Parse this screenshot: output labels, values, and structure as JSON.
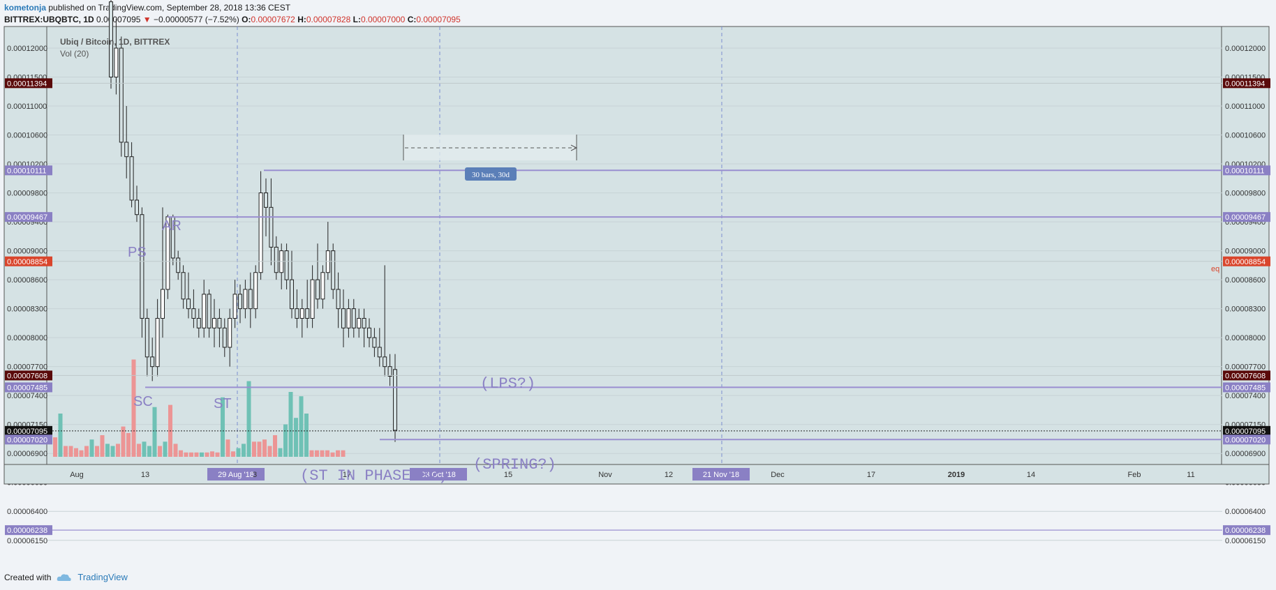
{
  "header": {
    "user": "kometonja",
    "published": "published on TradingView.com, September 28, 2018 13:36 CEST",
    "symbol": "BITTREX:UBQBTC, 1D",
    "last": "0.00007095",
    "change": "−0.00000577 (−7.52%)",
    "o_label": "O:",
    "o": "0.00007672",
    "h_label": "H:",
    "h": "0.00007828",
    "l_label": "L:",
    "l": "0.00007000",
    "c_label": "C:",
    "c": "0.00007095"
  },
  "legend": {
    "title": "Ubiq / Bitcoin, 1D, BITTREX",
    "vol": "Vol (20)"
  },
  "footer": {
    "created": "Created with",
    "brand": "TradingView"
  },
  "colors": {
    "bg": "#d5e2e4",
    "up": "#6fc1b5",
    "down": "#ec9595",
    "purple": "#9a8fd0",
    "label_purple": "#8a80c4",
    "dark_label": "#5a0a0a",
    "red_label": "#d9452c"
  },
  "chart_data": {
    "type": "candlestick",
    "x_axis_labels": [
      "Aug",
      "13",
      "29 Aug '18",
      "3",
      "17",
      "03 Oct '18",
      "15",
      "Nov",
      "12",
      "21 Nov '18",
      "Dec",
      "17",
      "2019",
      "14",
      "Feb",
      "11"
    ],
    "y_ticks": [
      "0.00012000",
      "0.00011500",
      "0.00011000",
      "0.00010600",
      "0.00010200",
      "0.00009800",
      "0.00009400",
      "0.00009000",
      "0.00008600",
      "0.00008300",
      "0.00008000",
      "0.00007700",
      "0.00007400",
      "0.00007150",
      "0.00006900",
      "0.00006650",
      "0.00006400",
      "0.00006150"
    ],
    "ylim": [
      6.15e-05,
      0.000124
    ],
    "price_labels": [
      {
        "value": 0.00011394,
        "text": "0.00011394",
        "style": "dark"
      },
      {
        "value": 0.00010111,
        "text": "0.00010111",
        "style": "purple"
      },
      {
        "value": 9.467e-05,
        "text": "0.00009467",
        "style": "purple"
      },
      {
        "value": 8.854e-05,
        "text": "0.00008854",
        "style": "red"
      },
      {
        "value": 7.608e-05,
        "text": "0.00007608",
        "style": "dark"
      },
      {
        "value": 7.485e-05,
        "text": "0.00007485",
        "style": "purple"
      },
      {
        "value": 7.095e-05,
        "text": "0.00007095",
        "style": "black"
      },
      {
        "value": 7.02e-05,
        "text": "0.00007020",
        "style": "purple"
      },
      {
        "value": 6.238e-05,
        "text": "0.00006238",
        "style": "purple"
      }
    ],
    "eq_label": "eq",
    "annotations": [
      {
        "text": "AR",
        "value": 9.77e-05,
        "bar": 23
      },
      {
        "text": "PS",
        "value": 9.37e-05,
        "bar": 17
      },
      {
        "text": "SC",
        "value": 7.54e-05,
        "bar": 18
      },
      {
        "text": "ST",
        "value": 7.54e-05,
        "bar": 31
      },
      {
        "text": "(LPS?)",
        "value": 7.84e-05,
        "bar": 73
      },
      {
        "text": "(SPRING?)",
        "value": 6.82e-05,
        "bar": 75
      },
      {
        "text": "(ST IN PHASE B?)",
        "value": 6.65e-05,
        "bar": 54
      }
    ],
    "measure_label": "30 bars, 30d",
    "candles": [
      [
        0.000128,
        0.00013,
        0.000113,
        0.000115
      ],
      [
        0.000115,
        0.000125,
        0.000112,
        0.00012
      ],
      [
        0.00012,
        0.000122,
        0.000103,
        0.000105
      ],
      [
        0.000105,
        0.00011,
        0.0001,
        0.000103
      ],
      [
        0.000103,
        0.000105,
        9.6e-05,
        9.7e-05
      ],
      [
        9.7e-05,
        9.9e-05,
        9.4e-05,
        9.5e-05
      ],
      [
        9.5e-05,
        9.6e-05,
        8e-05,
        8.2e-05
      ],
      [
        8.2e-05,
        8.3e-05,
        7.6e-05,
        7.8e-05
      ],
      [
        7.8e-05,
        8e-05,
        7.55e-05,
        7.7e-05
      ],
      [
        7.7e-05,
        8.4e-05,
        7.6e-05,
        8.2e-05
      ],
      [
        8.2e-05,
        9.6e-05,
        8e-05,
        8.5e-05
      ],
      [
        8.5e-05,
        9.5e-05,
        8.4e-05,
        9.47e-05
      ],
      [
        9.47e-05,
        9.5e-05,
        8.8e-05,
        8.9e-05
      ],
      [
        8.9e-05,
        9e-05,
        8.6e-05,
        8.7e-05
      ],
      [
        8.7e-05,
        8.8e-05,
        8.3e-05,
        8.4e-05
      ],
      [
        8.4e-05,
        8.7e-05,
        8.2e-05,
        8.3e-05
      ],
      [
        8.3e-05,
        8.5e-05,
        8.1e-05,
        8.2e-05
      ],
      [
        8.2e-05,
        8.3e-05,
        8e-05,
        8.1e-05
      ],
      [
        8.1e-05,
        8.6e-05,
        8e-05,
        8.45e-05
      ],
      [
        8.45e-05,
        8.5e-05,
        8e-05,
        8.1e-05
      ],
      [
        8.1e-05,
        8.4e-05,
        7.9e-05,
        8.2e-05
      ],
      [
        8.2e-05,
        8.3e-05,
        7.9e-05,
        8.1e-05
      ],
      [
        8.1e-05,
        8.2e-05,
        7.8e-05,
        7.9e-05
      ],
      [
        7.9e-05,
        8.3e-05,
        7.7e-05,
        8.2e-05
      ],
      [
        8.2e-05,
        8.6e-05,
        8.1e-05,
        8.45e-05
      ],
      [
        8.45e-05,
        8.55e-05,
        8.15e-05,
        8.3e-05
      ],
      [
        8.3e-05,
        8.6e-05,
        8.2e-05,
        8.5e-05
      ],
      [
        8.5e-05,
        8.7e-05,
        8.1e-05,
        8.3e-05
      ],
      [
        8.3e-05,
        8.8e-05,
        8.2e-05,
        8.7e-05
      ],
      [
        8.7e-05,
        0.000101,
        8.6e-05,
        9.8e-05
      ],
      [
        9.8e-05,
        0.0001,
        9.2e-05,
        9.6e-05
      ],
      [
        9.6e-05,
        0.0001,
        8.8e-05,
        9.05e-05
      ],
      [
        9.05e-05,
        9.2e-05,
        8.6e-05,
        8.7e-05
      ],
      [
        8.7e-05,
        9.1e-05,
        8.5e-05,
        9e-05
      ],
      [
        9e-05,
        9.1e-05,
        8.5e-05,
        8.6e-05
      ],
      [
        8.6e-05,
        9e-05,
        8.2e-05,
        8.3e-05
      ],
      [
        8.3e-05,
        8.5e-05,
        8.1e-05,
        8.2e-05
      ],
      [
        8.2e-05,
        8.4e-05,
        8e-05,
        8.3e-05
      ],
      [
        8.3e-05,
        8.6e-05,
        8.1e-05,
        8.2e-05
      ],
      [
        8.2e-05,
        8.8e-05,
        8.1e-05,
        8.6e-05
      ],
      [
        8.6e-05,
        9.1e-05,
        8.3e-05,
        8.4e-05
      ],
      [
        8.4e-05,
        8.8e-05,
        8.3e-05,
        8.7e-05
      ],
      [
        8.7e-05,
        9.4e-05,
        8.6e-05,
        9e-05
      ],
      [
        9e-05,
        9.1e-05,
        8.4e-05,
        8.5e-05
      ],
      [
        8.5e-05,
        8.7e-05,
        8.1e-05,
        8.3e-05
      ],
      [
        8.3e-05,
        8.5e-05,
        7.9e-05,
        8.1e-05
      ],
      [
        8.1e-05,
        8.4e-05,
        8e-05,
        8.3e-05
      ],
      [
        8.3e-05,
        8.4e-05,
        8e-05,
        8.1e-05
      ],
      [
        8.1e-05,
        8.3e-05,
        8e-05,
        8.2e-05
      ],
      [
        8.2e-05,
        8.3e-05,
        7.9e-05,
        8.1e-05
      ],
      [
        8.1e-05,
        8.2e-05,
        7.9e-05,
        8e-05
      ],
      [
        8e-05,
        8.1e-05,
        7.8e-05,
        7.9e-05
      ],
      [
        7.9e-05,
        8.1e-05,
        7.7e-05,
        7.8e-05
      ],
      [
        7.8e-05,
        8.8e-05,
        7.6e-05,
        7.7e-05
      ],
      [
        7.7e-05,
        7.83e-05,
        7.5e-05,
        7.6e-05
      ],
      [
        7.67e-05,
        7.83e-05,
        7e-05,
        7.1e-05
      ]
    ],
    "volumes": [
      [
        18,
        "down"
      ],
      [
        40,
        "up"
      ],
      [
        10,
        "down"
      ],
      [
        10,
        "down"
      ],
      [
        8,
        "down"
      ],
      [
        6,
        "down"
      ],
      [
        10,
        "down"
      ],
      [
        16,
        "up"
      ],
      [
        10,
        "down"
      ],
      [
        20,
        "down"
      ],
      [
        12,
        "up"
      ],
      [
        10,
        "up"
      ],
      [
        12,
        "down"
      ],
      [
        28,
        "down"
      ],
      [
        22,
        "down"
      ],
      [
        90,
        "down"
      ],
      [
        12,
        "down"
      ],
      [
        14,
        "up"
      ],
      [
        10,
        "up"
      ],
      [
        46,
        "up"
      ],
      [
        10,
        "down"
      ],
      [
        14,
        "up"
      ],
      [
        48,
        "down"
      ],
      [
        12,
        "down"
      ],
      [
        6,
        "down"
      ],
      [
        4,
        "down"
      ],
      [
        4,
        "down"
      ],
      [
        4,
        "down"
      ],
      [
        4,
        "up"
      ],
      [
        4,
        "down"
      ],
      [
        5,
        "down"
      ],
      [
        4,
        "down"
      ],
      [
        55,
        "up"
      ],
      [
        16,
        "down"
      ],
      [
        5,
        "down"
      ],
      [
        8,
        "up"
      ],
      [
        12,
        "up"
      ],
      [
        70,
        "up"
      ],
      [
        14,
        "down"
      ],
      [
        14,
        "down"
      ],
      [
        16,
        "down"
      ],
      [
        10,
        "down"
      ],
      [
        20,
        "down"
      ],
      [
        8,
        "up"
      ],
      [
        30,
        "up"
      ],
      [
        60,
        "up"
      ],
      [
        36,
        "up"
      ],
      [
        56,
        "up"
      ],
      [
        40,
        "up"
      ],
      [
        6,
        "down"
      ],
      [
        6,
        "down"
      ],
      [
        6,
        "down"
      ],
      [
        6,
        "down"
      ],
      [
        4,
        "down"
      ],
      [
        6,
        "down"
      ],
      [
        6,
        "down"
      ]
    ]
  }
}
